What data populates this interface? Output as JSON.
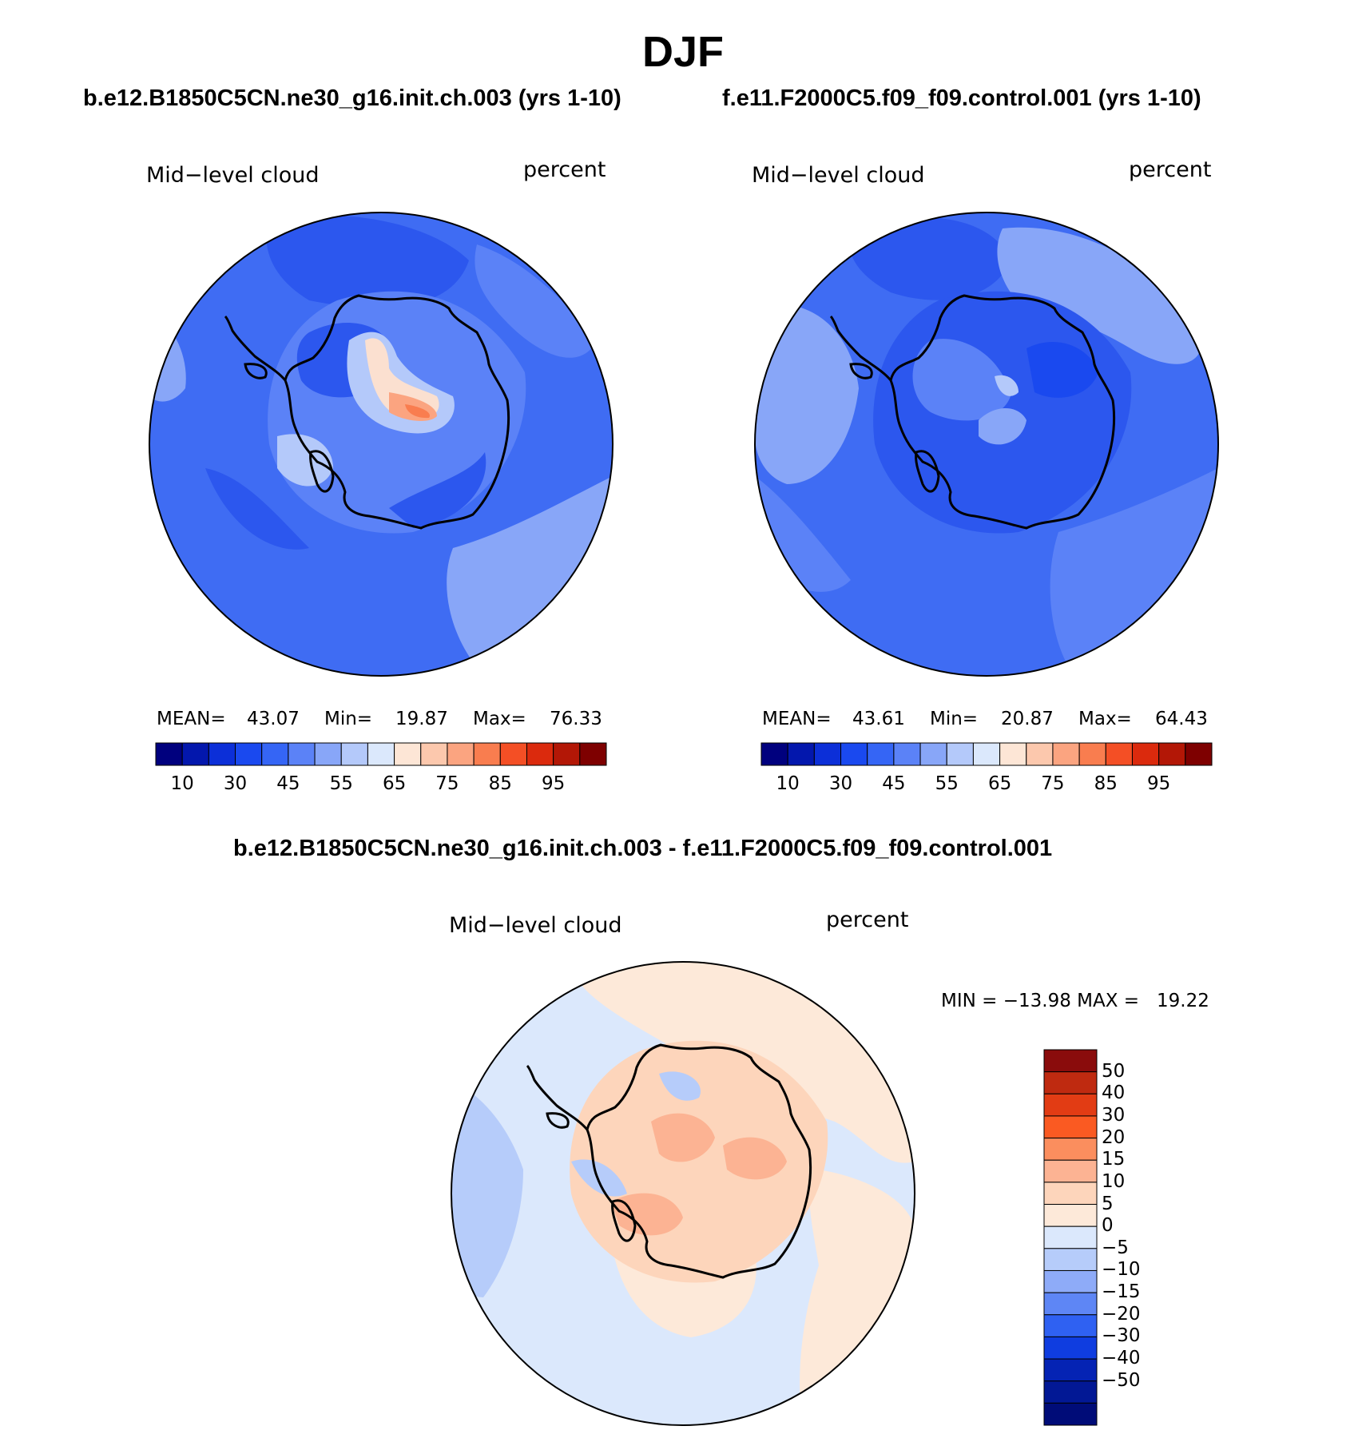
{
  "header": {
    "season": "DJF"
  },
  "panels": [
    {
      "case_title": "b.e12.B1850C5CN.ne30_g16.init.ch.003 (yrs 1-10)",
      "variable": "Mid−level cloud",
      "units": "percent",
      "stats": {
        "mean_label": "MEAN=",
        "mean": "43.07",
        "min_label": "Min=",
        "min": "19.87",
        "max_label": "Max=",
        "max": "76.33"
      }
    },
    {
      "case_title": "f.e11.F2000C5.f09_f09.control.001 (yrs 1-10)",
      "variable": "Mid−level cloud",
      "units": "percent",
      "stats": {
        "mean_label": "MEAN=",
        "mean": "43.61",
        "min_label": "Min=",
        "min": "20.87",
        "max_label": "Max=",
        "max": "64.43"
      }
    }
  ],
  "colorbar_abs": {
    "colors": [
      "#00007e",
      "#0317ad",
      "#0c2fd8",
      "#1a49ef",
      "#3565f5",
      "#5b82f7",
      "#88a6f8",
      "#b4c9fa",
      "#dbe8fc",
      "#fde6d6",
      "#fcc8ad",
      "#fba480",
      "#f97d4f",
      "#f44f25",
      "#db2a0d",
      "#b31706",
      "#7e0000"
    ],
    "tick_labels": [
      "10",
      "30",
      "45",
      "55",
      "65",
      "75",
      "85",
      "95"
    ]
  },
  "diff_panel": {
    "title": "b.e12.B1850C5CN.ne30_g16.init.ch.003 - f.e11.F2000C5.f09_f09.control.001",
    "variable": "Mid−level cloud",
    "units": "percent",
    "minmax_text": "MIN = −13.98 MAX =   19.22"
  },
  "colorbar_diff": {
    "colors_top_to_bottom": [
      "#8a0c0c",
      "#bf2a10",
      "#e23c14",
      "#fa5a22",
      "#fb8e5e",
      "#fcb393",
      "#fdd5bb",
      "#fde9d9",
      "#dbe8fc",
      "#b6ccfa",
      "#8eabf8",
      "#5e86f5",
      "#2f61f2",
      "#0f3de0",
      "#0523b4",
      "#021895",
      "#000c78"
    ],
    "tick_labels": [
      "50",
      "40",
      "30",
      "20",
      "15",
      "10",
      "5",
      "0",
      "−5",
      "−10",
      "−15",
      "−20",
      "−30",
      "−40",
      "−50"
    ]
  }
}
